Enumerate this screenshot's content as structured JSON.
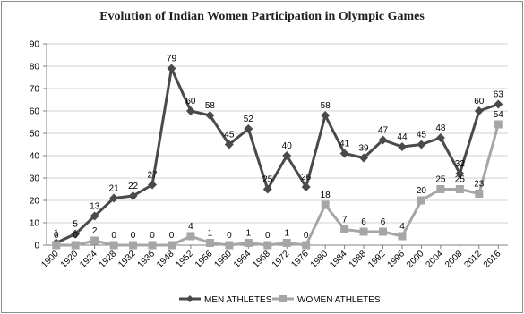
{
  "chart_data": {
    "type": "line",
    "title": "Evolution of Indian Women Participation in Olympic Games",
    "xlabel": "",
    "ylabel": "",
    "ylim": [
      0,
      90
    ],
    "yticks": [
      0,
      10,
      20,
      30,
      40,
      50,
      60,
      70,
      80,
      90
    ],
    "grid": true,
    "legend": "bottom",
    "categories": [
      "1900",
      "1920",
      "1924",
      "1928",
      "1932",
      "1936",
      "1948",
      "1952",
      "1956",
      "1960",
      "1964",
      "1968",
      "1972",
      "1976",
      "1980",
      "1984",
      "1988",
      "1992",
      "1996",
      "2000",
      "2004",
      "2008",
      "2012",
      "2016"
    ],
    "series": [
      {
        "name": "MEN ATHLETES",
        "color": "#4a4a4a",
        "marker": "diamond",
        "values": [
          1,
          5,
          13,
          21,
          22,
          27,
          79,
          60,
          58,
          45,
          52,
          25,
          40,
          26,
          58,
          41,
          39,
          47,
          44,
          45,
          48,
          32,
          60,
          63
        ],
        "labels": [
          "1",
          "5",
          "13",
          "21",
          "22",
          "27",
          "79",
          "60",
          "58",
          "45",
          "52",
          "25",
          "40",
          "26",
          "58",
          "41",
          "39",
          "47",
          "44",
          "45",
          "48",
          "32",
          "60",
          "63"
        ]
      },
      {
        "name": "WOMEN ATHLETES",
        "color": "#a6a6a6",
        "marker": "square",
        "values": [
          0,
          0,
          2,
          0,
          0,
          0,
          0,
          4,
          1,
          0,
          1,
          0,
          1,
          0,
          18,
          7,
          6,
          6,
          4,
          20,
          25,
          25,
          23,
          54
        ],
        "labels": [
          "0",
          "0",
          "2",
          "0",
          "0",
          "0",
          "0",
          "4",
          "1",
          "0",
          "1",
          "0",
          "1",
          "0",
          "18",
          "7",
          "6",
          "6",
          "4",
          "20",
          "25",
          "25",
          "23",
          "54"
        ]
      }
    ]
  }
}
